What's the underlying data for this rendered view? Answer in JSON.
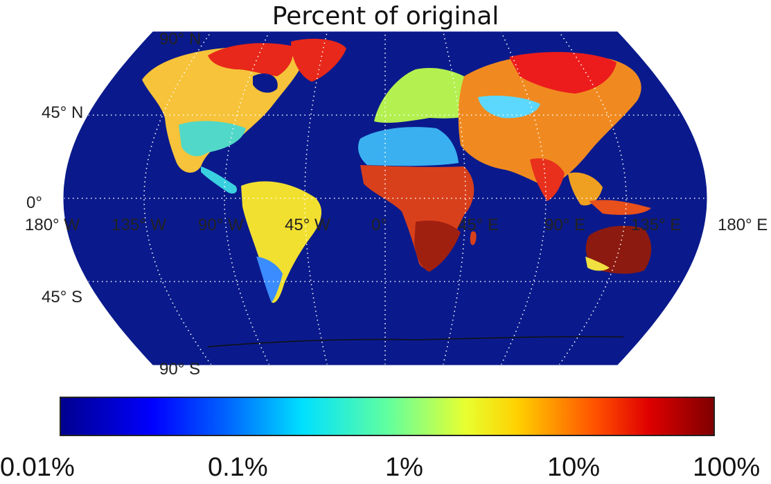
{
  "title": "Percent of original",
  "map": {
    "projection": "Robinson",
    "ocean_color": "#0a1a8c",
    "graticule": "dotted white",
    "lat_labels": [
      {
        "text": "90° N",
        "lat": 90
      },
      {
        "text": "45° N",
        "lat": 45
      },
      {
        "text": "0°",
        "lat": 0
      },
      {
        "text": "45° S",
        "lat": -45
      },
      {
        "text": "90° S",
        "lat": -90
      }
    ],
    "lon_labels": [
      {
        "text": "180° W",
        "lon": -180
      },
      {
        "text": "135° W",
        "lon": -135
      },
      {
        "text": "90° W",
        "lon": -90
      },
      {
        "text": "45° W",
        "lon": -45
      },
      {
        "text": "0°",
        "lon": 0
      },
      {
        "text": "45° E",
        "lon": 45
      },
      {
        "text": "90° E",
        "lon": 90
      },
      {
        "text": "135° E",
        "lon": 135
      },
      {
        "text": "180° E",
        "lon": 180
      }
    ]
  },
  "colorbar": {
    "colormap": "jet",
    "scale": "log",
    "ticks": [
      "0.01%",
      "0.1%",
      "1%",
      "10%",
      "100%"
    ],
    "range": [
      0.01,
      100
    ],
    "colors": {
      "lowest": "#00008f",
      "low": "#0060ff",
      "mid": "#60ffa0",
      "high": "#ffd000",
      "highest": "#800000"
    }
  }
}
